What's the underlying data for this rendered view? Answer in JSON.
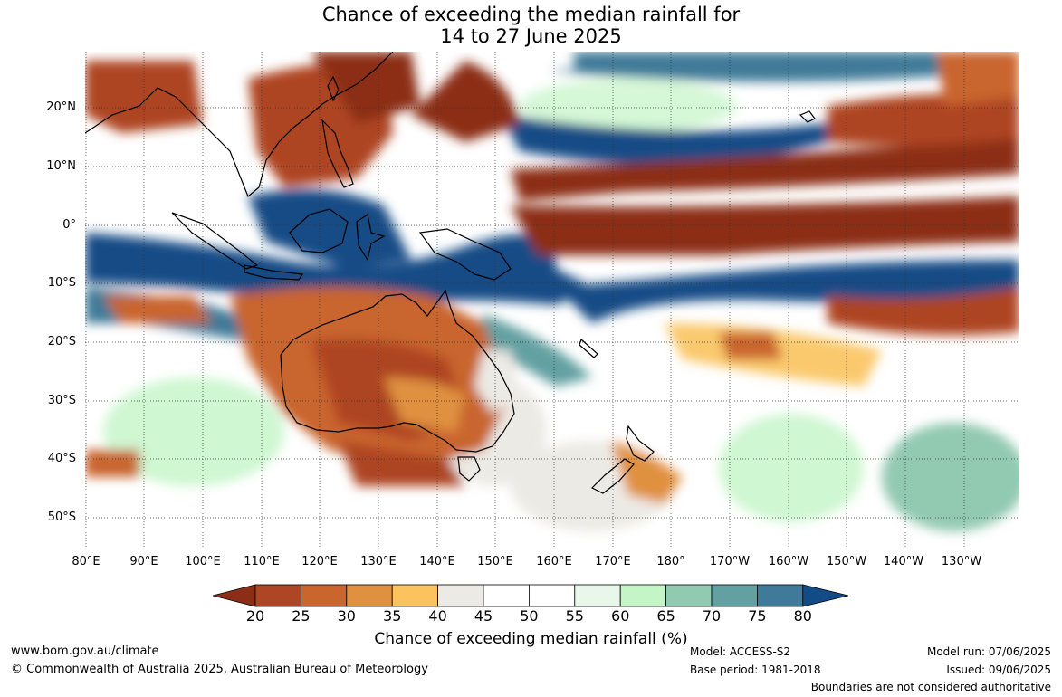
{
  "title": {
    "line1": "Chance of exceeding the median rainfall for",
    "line2": "14 to 27 June 2025"
  },
  "map": {
    "lat_labels": [
      "20°N",
      "10°N",
      "0°",
      "10°S",
      "20°S",
      "30°S",
      "40°S",
      "50°S"
    ],
    "lon_labels": [
      "80°E",
      "90°E",
      "100°E",
      "110°E",
      "120°E",
      "130°E",
      "140°E",
      "150°E",
      "160°E",
      "170°E",
      "180°",
      "170°W",
      "160°W",
      "150°W",
      "140°W",
      "130°W"
    ]
  },
  "colorbar": {
    "ticks": [
      "20",
      "25",
      "30",
      "35",
      "40",
      "45",
      "50",
      "55",
      "60",
      "65",
      "70",
      "75",
      "80"
    ],
    "colors": [
      "#8c2d18",
      "#ae4524",
      "#c9652d",
      "#e0913f",
      "#fac35e",
      "#eceae4",
      "#ffffff",
      "#ffffff",
      "#e9f7ea",
      "#c3f5c6",
      "#92c9b1",
      "#63a0a2",
      "#3f7a98",
      "#124c86"
    ],
    "label": "Chance of exceeding median rainfall (%)"
  },
  "footer": {
    "website": "www.bom.gov.au/climate",
    "copyright": "© Commonwealth of Australia 2025, Australian Bureau of Meteorology",
    "model": "Model: ACCESS-S2",
    "base_period": "Base period: 1981-2018",
    "model_run": "Model run: 07/06/2025",
    "issued": "Issued: 09/06/2025",
    "disclaimer": "Boundaries are not considered authoritative"
  }
}
